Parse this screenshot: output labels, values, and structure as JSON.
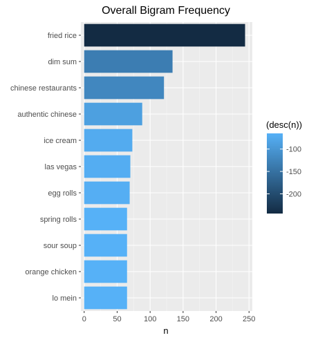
{
  "chart_data": {
    "type": "bar",
    "orientation": "horizontal",
    "title": "Overall Bigram Frequency",
    "xlabel": "n",
    "ylabel": "",
    "categories": [
      "fried rice",
      "dim sum",
      "chinese restaurants",
      "authentic chinese",
      "ice cream",
      "las vegas",
      "egg rolls",
      "spring rolls",
      "sour soup",
      "orange chicken",
      "lo mein"
    ],
    "values": [
      244,
      134,
      121,
      88,
      73,
      70,
      69,
      65,
      65,
      65,
      65
    ],
    "xlim": [
      -5,
      255
    ],
    "xticks": [
      0,
      50,
      100,
      150,
      200,
      250
    ],
    "grid": true,
    "legend": {
      "title": "(desc(n))",
      "position": "right",
      "ticks": [
        -100,
        -150,
        -200
      ],
      "color_low": "#132B43",
      "color_high": "#56B1F7"
    }
  }
}
